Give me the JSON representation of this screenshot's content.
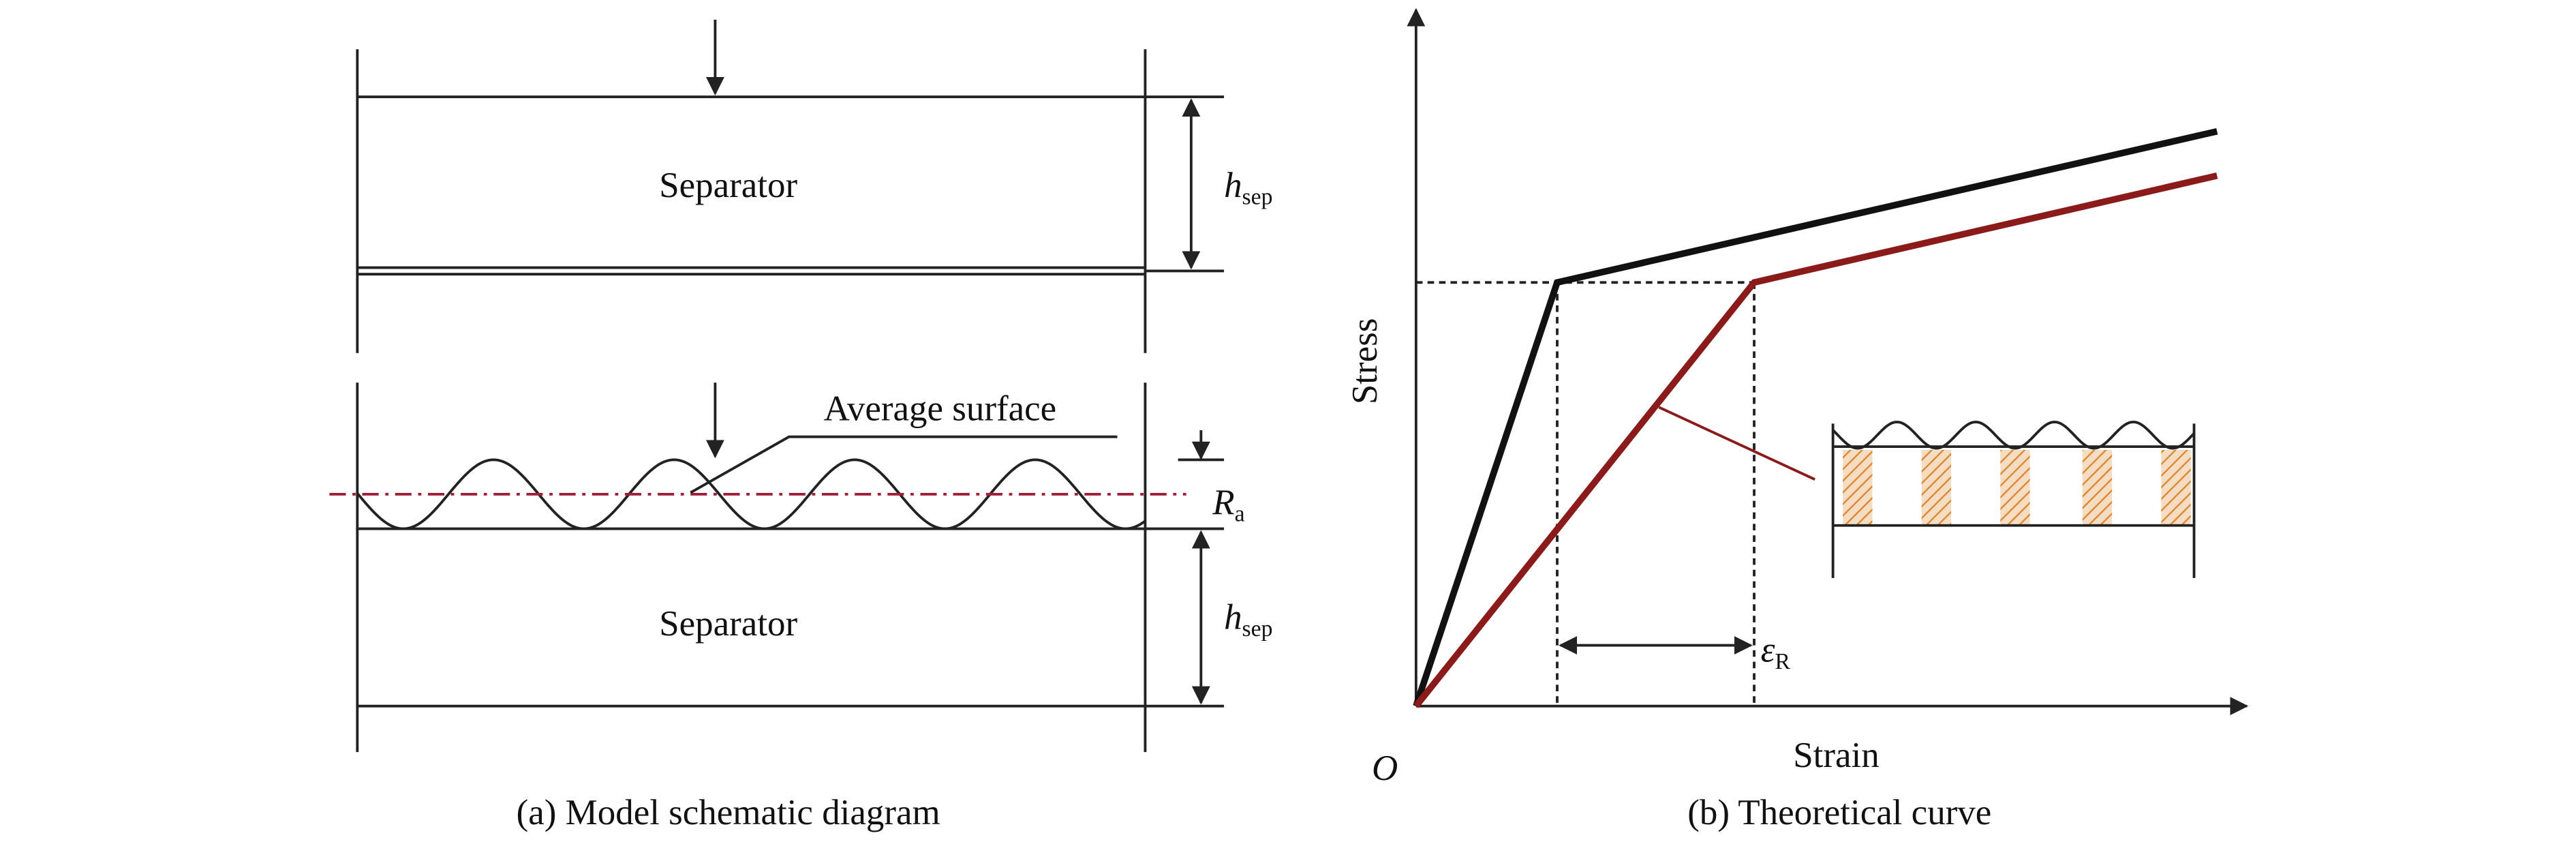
{
  "panel_a": {
    "caption": "(a) Model schematic diagram",
    "upper_block": {
      "label": "Separator",
      "height_symbol": "h",
      "height_subscript": "sep"
    },
    "lower_block": {
      "label": "Separator",
      "height_symbol": "h",
      "height_subscript": "sep"
    },
    "surface_label": "Average surface",
    "roughness_symbol": "R",
    "roughness_subscript": "a"
  },
  "panel_b": {
    "caption": "(b) Theoretical curve",
    "y_axis_label": "Stress",
    "x_axis_label": "Strain",
    "origin_label": "O",
    "strain_symbol": "ε",
    "strain_subscript": "R"
  }
}
